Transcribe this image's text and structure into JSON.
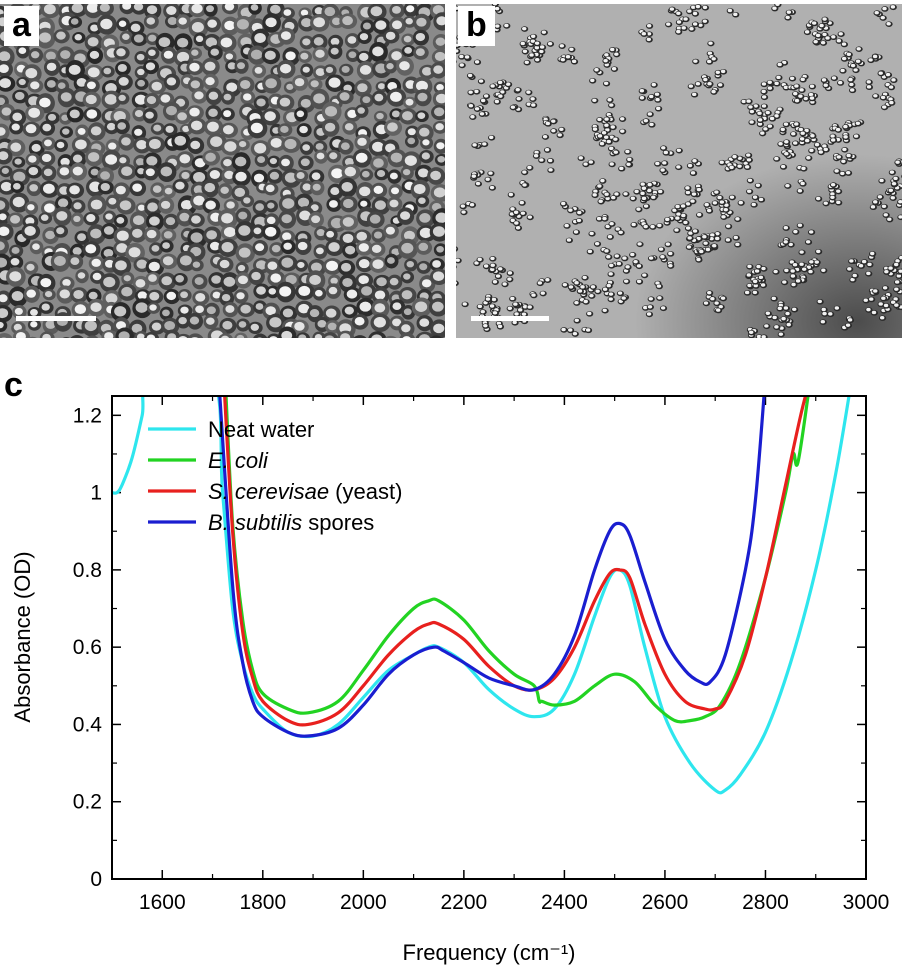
{
  "panels": {
    "a": {
      "label": "a"
    },
    "b": {
      "label": "b"
    },
    "c": {
      "label": "c"
    }
  },
  "colors": {
    "neat_water": "#2ee6ee",
    "e_coli": "#22d322",
    "yeast": "#e8201e",
    "spores": "#1a1ed0"
  },
  "chart_data": {
    "type": "line",
    "title": "",
    "xlabel": "Frequency (cm⁻¹)",
    "ylabel": "Absorbance (OD)",
    "xlim": [
      1500,
      3000
    ],
    "ylim": [
      0,
      1.25
    ],
    "x_ticks": [
      1600,
      1800,
      2000,
      2200,
      2400,
      2600,
      2800,
      3000
    ],
    "x_tick_labels": [
      "1600",
      "1800",
      "2000",
      "2200",
      "2400",
      "2600",
      "2800",
      "3000"
    ],
    "y_ticks": [
      0,
      0.2,
      0.4,
      0.6,
      0.8,
      1,
      1.2
    ],
    "y_tick_labels": [
      "0",
      "0.2",
      "0.4",
      "0.6",
      "0.8",
      "1",
      "1.2"
    ],
    "legend_position": "top-left",
    "series": [
      {
        "name": "Neat water",
        "legend": [
          {
            "text": "Neat water",
            "italic": false
          }
        ],
        "color": "#2ee6ee",
        "x": [
          1500,
          1510,
          1520,
          1540,
          1560,
          1575,
          1700,
          1720,
          1740,
          1760,
          1780,
          1800,
          1850,
          1900,
          1950,
          2000,
          2050,
          2100,
          2130,
          2150,
          2200,
          2250,
          2300,
          2340,
          2380,
          2420,
          2460,
          2490,
          2510,
          2530,
          2560,
          2600,
          2650,
          2700,
          2720,
          2750,
          2800,
          2850,
          2900,
          2940,
          2970
        ],
        "y": [
          1.0,
          1.0,
          1.02,
          1.09,
          1.2,
          1.3,
          1.3,
          1.0,
          0.7,
          0.56,
          0.48,
          0.44,
          0.38,
          0.37,
          0.4,
          0.47,
          0.54,
          0.58,
          0.6,
          0.6,
          0.56,
          0.49,
          0.44,
          0.42,
          0.44,
          0.53,
          0.68,
          0.78,
          0.8,
          0.76,
          0.6,
          0.42,
          0.3,
          0.23,
          0.23,
          0.27,
          0.38,
          0.56,
          0.8,
          1.05,
          1.28
        ]
      },
      {
        "name": "E. coli",
        "legend": [
          {
            "text": "E. coli",
            "italic": true
          }
        ],
        "color": "#22d322",
        "x": [
          1725,
          1740,
          1760,
          1780,
          1800,
          1850,
          1890,
          1950,
          2000,
          2050,
          2100,
          2130,
          2150,
          2200,
          2250,
          2300,
          2340,
          2350,
          2355,
          2380,
          2420,
          2460,
          2500,
          2540,
          2580,
          2620,
          2650,
          2680,
          2710,
          2750,
          2800,
          2840,
          2855,
          2865,
          2890
        ],
        "y": [
          1.3,
          0.92,
          0.67,
          0.54,
          0.48,
          0.44,
          0.43,
          0.46,
          0.54,
          0.63,
          0.7,
          0.72,
          0.72,
          0.67,
          0.59,
          0.53,
          0.5,
          0.46,
          0.46,
          0.45,
          0.46,
          0.5,
          0.53,
          0.51,
          0.45,
          0.41,
          0.41,
          0.42,
          0.45,
          0.56,
          0.78,
          1.0,
          1.1,
          1.08,
          1.3
        ]
      },
      {
        "name": "S. cerevisae (yeast)",
        "legend": [
          {
            "text": "S. cerevisae",
            "italic": true
          },
          {
            "text": " (yeast)",
            "italic": false
          }
        ],
        "color": "#e8201e",
        "x": [
          1722,
          1740,
          1760,
          1780,
          1800,
          1850,
          1890,
          1950,
          2000,
          2050,
          2100,
          2130,
          2150,
          2200,
          2250,
          2300,
          2340,
          2380,
          2420,
          2460,
          2490,
          2510,
          2530,
          2560,
          2600,
          2640,
          2680,
          2700,
          2720,
          2760,
          2800,
          2840,
          2870,
          2890
        ],
        "y": [
          1.3,
          0.9,
          0.64,
          0.52,
          0.46,
          0.41,
          0.4,
          0.43,
          0.5,
          0.58,
          0.64,
          0.66,
          0.66,
          0.62,
          0.55,
          0.5,
          0.49,
          0.52,
          0.6,
          0.72,
          0.79,
          0.8,
          0.78,
          0.66,
          0.53,
          0.46,
          0.44,
          0.44,
          0.46,
          0.58,
          0.78,
          1.02,
          1.2,
          1.3
        ]
      },
      {
        "name": "B. subtilis spores",
        "legend": [
          {
            "text": "B. subtilis",
            "italic": true
          },
          {
            "text": " spores",
            "italic": false
          }
        ],
        "color": "#1a1ed0",
        "x": [
          1712,
          1740,
          1760,
          1780,
          1800,
          1850,
          1890,
          1950,
          2000,
          2050,
          2100,
          2140,
          2160,
          2200,
          2250,
          2300,
          2340,
          2380,
          2420,
          2460,
          2490,
          2510,
          2530,
          2560,
          2600,
          2640,
          2670,
          2690,
          2720,
          2760,
          2780,
          2800
        ],
        "y": [
          1.3,
          0.76,
          0.56,
          0.46,
          0.42,
          0.38,
          0.37,
          0.39,
          0.45,
          0.53,
          0.58,
          0.6,
          0.59,
          0.56,
          0.52,
          0.5,
          0.49,
          0.53,
          0.63,
          0.8,
          0.9,
          0.92,
          0.89,
          0.77,
          0.62,
          0.54,
          0.51,
          0.51,
          0.58,
          0.8,
          0.98,
          1.3
        ]
      }
    ]
  }
}
